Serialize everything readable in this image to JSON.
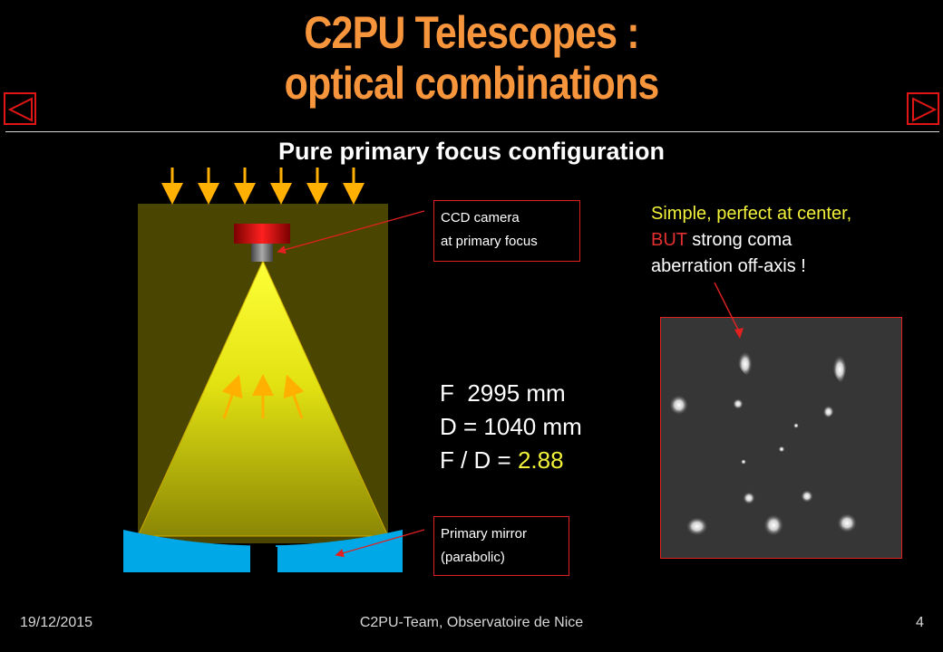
{
  "slide": {
    "title_line1": "C2PU Telescopes :",
    "title_line2": "optical combinations",
    "subtitle": "Pure primary focus configuration"
  },
  "labels": {
    "ccd_line1": "CCD camera",
    "ccd_line2": "at primary focus",
    "mirror_line1": "Primary mirror",
    "mirror_line2": "(parabolic)"
  },
  "params": {
    "focal": "F  2995 mm",
    "diameter": "D = 1040 mm",
    "ratio_prefix": "F / D = ",
    "ratio_value": "2.88"
  },
  "note": {
    "line1": "Simple, perfect at center,",
    "line2_red": "BUT",
    "line2_rest": " strong coma",
    "line3": "aberration off-axis !"
  },
  "footer": {
    "date": "19/12/2015",
    "center": "C2PU-Team, Observatoire de Nice",
    "page": "4"
  },
  "nav": {
    "prev_icon": "triangle-left-icon",
    "next_icon": "triangle-right-icon"
  },
  "colors": {
    "title": "#f7953c",
    "accent_red": "#e32020",
    "highlight_yellow": "#f2f23a",
    "mirror_blue": "#00a8e8",
    "tube": "#4a4500"
  }
}
